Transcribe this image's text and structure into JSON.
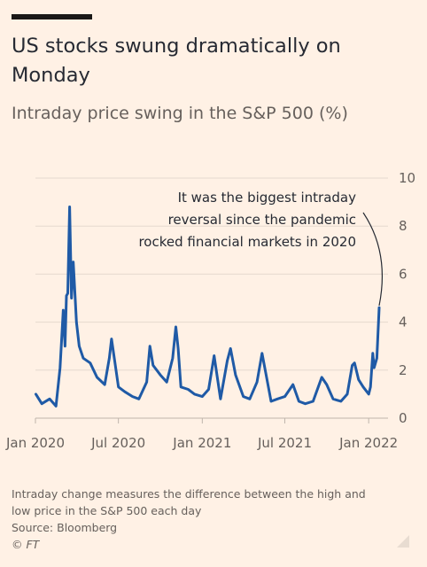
{
  "header": {
    "title": "US stocks swung dramatically on Monday",
    "subtitle": "Intraday price swing in the S&P 500 (%)"
  },
  "annotation": [
    "It was the biggest intraday",
    "reversal since the pandemic",
    "rocked financial markets in 2020"
  ],
  "footer": {
    "note_line1": "Intraday change measures the difference between the high and",
    "note_line2": "low price in the S&P 500 each day",
    "source": "Source: Bloomberg",
    "copyright": "© FT"
  },
  "colors": {
    "background": "#FFF1E5",
    "line": "#1F5AA6",
    "text": "#33302E",
    "muted": "#66605C",
    "grid": "#E6D9CE"
  },
  "chart_data": {
    "type": "line",
    "title": "Intraday price swing in the S&P 500 (%)",
    "xlabel": "",
    "ylabel": "",
    "ylim": [
      0,
      10
    ],
    "y_ticks": [
      "0",
      "2",
      "4",
      "6",
      "8",
      "10"
    ],
    "x_ticks": [
      "Jan 2020",
      "Jul 2020",
      "Jan 2021",
      "Jul 2021",
      "Jan 2022"
    ],
    "y_axis_position": "right",
    "grid": true,
    "series": [
      {
        "x": [
          "2020-01-02",
          "2020-01-15",
          "2020-02-01",
          "2020-02-15",
          "2020-02-24",
          "2020-03-02",
          "2020-03-06",
          "2020-03-09",
          "2020-03-12",
          "2020-03-16",
          "2020-03-20",
          "2020-03-24",
          "2020-03-31",
          "2020-04-06",
          "2020-04-15",
          "2020-04-30",
          "2020-05-15",
          "2020-06-01",
          "2020-06-11",
          "2020-06-16",
          "2020-07-01",
          "2020-07-15",
          "2020-08-01",
          "2020-08-15",
          "2020-09-01",
          "2020-09-08",
          "2020-09-15",
          "2020-10-01",
          "2020-10-15",
          "2020-10-28",
          "2020-11-04",
          "2020-11-09",
          "2020-11-15",
          "2020-12-01",
          "2020-12-15",
          "2021-01-01",
          "2021-01-15",
          "2021-01-27",
          "2021-02-10",
          "2021-02-25",
          "2021-03-04",
          "2021-03-15",
          "2021-04-01",
          "2021-04-15",
          "2021-05-01",
          "2021-05-12",
          "2021-05-20",
          "2021-06-01",
          "2021-06-15",
          "2021-07-01",
          "2021-07-19",
          "2021-08-01",
          "2021-08-15",
          "2021-09-01",
          "2021-09-20",
          "2021-10-01",
          "2021-10-15",
          "2021-11-01",
          "2021-11-15",
          "2021-11-26",
          "2021-12-01",
          "2021-12-10",
          "2021-12-20",
          "2022-01-01",
          "2022-01-05",
          "2022-01-10",
          "2022-01-13",
          "2022-01-19",
          "2022-01-24"
        ],
        "y": [
          1.0,
          0.6,
          0.8,
          0.5,
          2.1,
          4.5,
          3.0,
          5.1,
          5.2,
          8.8,
          5.0,
          6.5,
          4.0,
          3.0,
          2.5,
          2.3,
          1.7,
          1.4,
          2.5,
          3.3,
          1.3,
          1.1,
          0.9,
          0.8,
          1.5,
          3.0,
          2.2,
          1.8,
          1.5,
          2.5,
          3.8,
          2.9,
          1.3,
          1.2,
          1.0,
          0.9,
          1.2,
          2.6,
          0.8,
          2.4,
          2.9,
          1.8,
          0.9,
          0.8,
          1.5,
          2.7,
          1.9,
          0.7,
          0.8,
          0.9,
          1.4,
          0.7,
          0.6,
          0.7,
          1.7,
          1.4,
          0.8,
          0.7,
          1.0,
          2.2,
          2.3,
          1.6,
          1.3,
          1.0,
          1.3,
          2.7,
          2.1,
          2.5,
          4.6
        ]
      }
    ]
  }
}
